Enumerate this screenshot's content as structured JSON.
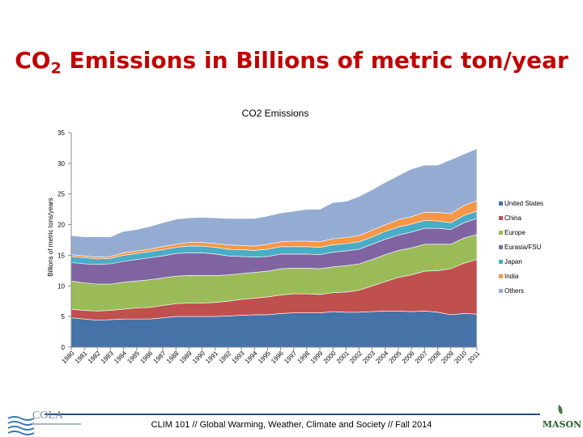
{
  "slide": {
    "title_main": "CO",
    "title_sub": "2",
    "title_rest": " Emissions in Billions of metric ton/year",
    "footer": "CLIM 101 // Global Warming, Weather, Climate and Society // Fall 2014",
    "logo_left_text": "COLA",
    "logo_right_text": "MASON"
  },
  "chart_data": {
    "type": "area",
    "stacked": true,
    "title": "CO2 Emissions",
    "ylabel": "Billions of metric tons/years",
    "xlabel": "",
    "ylim": [
      0,
      35
    ],
    "yticks": [
      0,
      5,
      10,
      15,
      20,
      25,
      30,
      35
    ],
    "categories": [
      "1980",
      "1981",
      "1982",
      "1983",
      "1984",
      "1985",
      "1986",
      "1987",
      "1988",
      "1989",
      "1990",
      "1991",
      "1992",
      "1993",
      "1994",
      "1995",
      "1996",
      "1997",
      "1998",
      "1999",
      "2000",
      "2001",
      "2002",
      "2003",
      "2004",
      "2005",
      "2006",
      "2007",
      "2008",
      "2009",
      "2010",
      "2011"
    ],
    "legend_position": "right",
    "series": [
      {
        "name": "United States",
        "color": "#4572a7",
        "values": [
          4.8,
          4.6,
          4.4,
          4.5,
          4.6,
          4.6,
          4.6,
          4.8,
          5.0,
          5.0,
          5.0,
          5.0,
          5.1,
          5.2,
          5.3,
          5.3,
          5.5,
          5.6,
          5.6,
          5.6,
          5.8,
          5.7,
          5.7,
          5.8,
          5.9,
          5.9,
          5.8,
          5.9,
          5.7,
          5.3,
          5.5,
          5.4
        ]
      },
      {
        "name": "China",
        "color": "#c0504d",
        "values": [
          1.4,
          1.4,
          1.5,
          1.5,
          1.6,
          1.8,
          1.9,
          2.0,
          2.1,
          2.2,
          2.2,
          2.3,
          2.4,
          2.6,
          2.7,
          2.9,
          3.0,
          3.1,
          3.1,
          3.0,
          3.1,
          3.3,
          3.6,
          4.2,
          4.8,
          5.5,
          6.0,
          6.5,
          6.8,
          7.5,
          8.2,
          8.9
        ]
      },
      {
        "name": "Europe",
        "color": "#9bbb59",
        "values": [
          4.6,
          4.5,
          4.4,
          4.3,
          4.4,
          4.4,
          4.5,
          4.5,
          4.5,
          4.5,
          4.5,
          4.4,
          4.3,
          4.2,
          4.2,
          4.2,
          4.3,
          4.2,
          4.2,
          4.2,
          4.2,
          4.3,
          4.3,
          4.3,
          4.4,
          4.4,
          4.4,
          4.4,
          4.3,
          4.0,
          4.1,
          4.1
        ]
      },
      {
        "name": "Eurasia/FSU",
        "color": "#8064a2",
        "values": [
          3.0,
          3.1,
          3.2,
          3.3,
          3.4,
          3.5,
          3.6,
          3.6,
          3.7,
          3.7,
          3.7,
          3.5,
          3.1,
          2.8,
          2.5,
          2.4,
          2.4,
          2.3,
          2.3,
          2.3,
          2.4,
          2.4,
          2.4,
          2.5,
          2.5,
          2.5,
          2.6,
          2.6,
          2.6,
          2.4,
          2.5,
          2.6
        ]
      },
      {
        "name": "Japan",
        "color": "#4bacc6",
        "values": [
          1.0,
          1.0,
          0.9,
          0.9,
          1.0,
          1.0,
          1.0,
          1.0,
          1.0,
          1.1,
          1.1,
          1.1,
          1.1,
          1.1,
          1.1,
          1.2,
          1.2,
          1.2,
          1.2,
          1.2,
          1.2,
          1.2,
          1.2,
          1.2,
          1.3,
          1.3,
          1.3,
          1.3,
          1.2,
          1.1,
          1.2,
          1.2
        ]
      },
      {
        "name": "India",
        "color": "#f79646",
        "values": [
          0.3,
          0.3,
          0.3,
          0.3,
          0.4,
          0.4,
          0.4,
          0.5,
          0.5,
          0.6,
          0.6,
          0.6,
          0.7,
          0.7,
          0.7,
          0.8,
          0.8,
          0.9,
          0.9,
          0.9,
          1.0,
          1.0,
          1.0,
          1.1,
          1.1,
          1.2,
          1.2,
          1.3,
          1.4,
          1.5,
          1.6,
          1.7
        ]
      },
      {
        "name": "Others",
        "color": "#95acd2",
        "values": [
          3.1,
          3.1,
          3.3,
          3.2,
          3.5,
          3.5,
          3.7,
          3.9,
          4.1,
          4.0,
          4.1,
          4.2,
          4.3,
          4.4,
          4.5,
          4.6,
          4.7,
          4.9,
          5.2,
          5.3,
          5.9,
          5.9,
          6.4,
          6.6,
          6.9,
          7.2,
          7.8,
          7.7,
          7.7,
          8.8,
          8.4,
          8.5
        ]
      }
    ]
  }
}
